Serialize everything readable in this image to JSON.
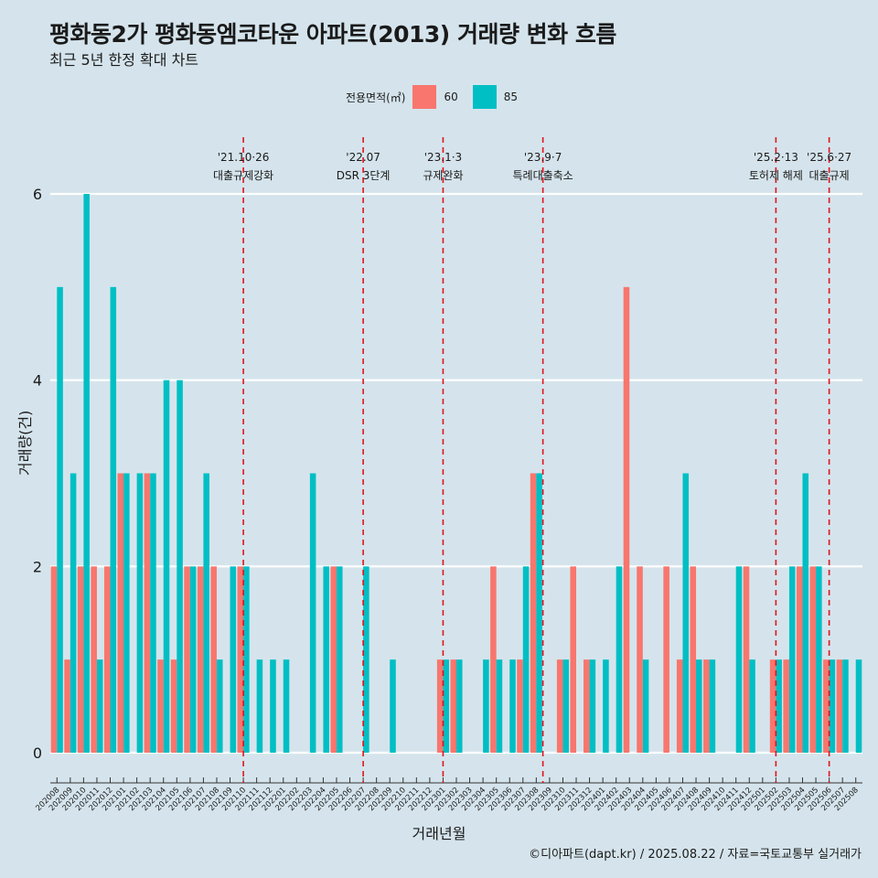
{
  "header": {
    "title": "평화동2가 평화동엠코타운 아파트(2013) 거래량 변화 흐름",
    "subtitle": "최근 5년 한정 확대 차트"
  },
  "legend": {
    "title": "전용면적(㎡)",
    "items": [
      {
        "label": "60",
        "color": "#f8766d"
      },
      {
        "label": "85",
        "color": "#00bfc4"
      }
    ]
  },
  "axes": {
    "xlabel": "거래년월",
    "ylabel": "거래량(건)"
  },
  "caption": "©디아파트(dapt.kr) / 2025.08.22 / 자료=국토교통부 실거래가",
  "chart_data": {
    "type": "bar",
    "ylim": [
      0,
      6
    ],
    "yticks": [
      0,
      2,
      4,
      6
    ],
    "categories": [
      "202008",
      "202009",
      "202010",
      "202011",
      "202012",
      "202101",
      "202102",
      "202103",
      "202104",
      "202105",
      "202106",
      "202107",
      "202108",
      "202109",
      "202110",
      "202111",
      "202112",
      "202201",
      "202202",
      "202203",
      "202204",
      "202205",
      "202206",
      "202207",
      "202208",
      "202209",
      "202210",
      "202211",
      "202212",
      "202301",
      "202302",
      "202303",
      "202304",
      "202305",
      "202306",
      "202307",
      "202308",
      "202309",
      "202310",
      "202311",
      "202312",
      "202401",
      "202402",
      "202403",
      "202404",
      "202405",
      "202406",
      "202407",
      "202408",
      "202409",
      "202410",
      "202411",
      "202412",
      "202501",
      "202502",
      "202503",
      "202504",
      "202505",
      "202506",
      "202507",
      "202508"
    ],
    "series": [
      {
        "name": "60",
        "color": "#f8766d",
        "values": [
          2,
          1,
          2,
          2,
          2,
          3,
          0,
          3,
          1,
          1,
          2,
          2,
          2,
          0,
          2,
          0,
          0,
          0,
          0,
          0,
          0,
          2,
          0,
          0,
          0,
          0,
          0,
          0,
          0,
          1,
          1,
          0,
          0,
          2,
          0,
          1,
          3,
          0,
          1,
          2,
          1,
          0,
          0,
          5,
          2,
          0,
          2,
          1,
          2,
          1,
          0,
          0,
          2,
          0,
          1,
          1,
          2,
          2,
          1,
          1,
          0
        ]
      },
      {
        "name": "85",
        "color": "#00bfc4",
        "values": [
          5,
          3,
          6,
          1,
          5,
          3,
          3,
          3,
          4,
          4,
          2,
          3,
          1,
          2,
          2,
          1,
          1,
          1,
          0,
          3,
          2,
          2,
          0,
          2,
          0,
          1,
          0,
          0,
          0,
          1,
          1,
          0,
          1,
          1,
          1,
          2,
          3,
          0,
          1,
          0,
          1,
          1,
          2,
          0,
          1,
          0,
          0,
          3,
          1,
          1,
          0,
          2,
          1,
          0,
          1,
          2,
          3,
          2,
          1,
          1,
          1
        ]
      }
    ],
    "events": [
      {
        "date": "'21.10·26",
        "label": "대출규제강화",
        "after": "202110",
        "offset": 0.0
      },
      {
        "date": "'22.07",
        "label": "DSR 3단계",
        "after": "202207",
        "offset": 0.0
      },
      {
        "date": "'23.1·3",
        "label": "규제완화",
        "after": "202301",
        "offset": 0.0
      },
      {
        "date": "'23.9·7",
        "label": "특례대출축소",
        "after": "202309",
        "offset": -0.5
      },
      {
        "date": "'25.2·13",
        "label": "토허제 해제",
        "after": "202502",
        "offset": 0.0
      },
      {
        "date": "'25.6·27",
        "label": "대출규제",
        "after": "202506",
        "offset": 0.0
      }
    ]
  }
}
